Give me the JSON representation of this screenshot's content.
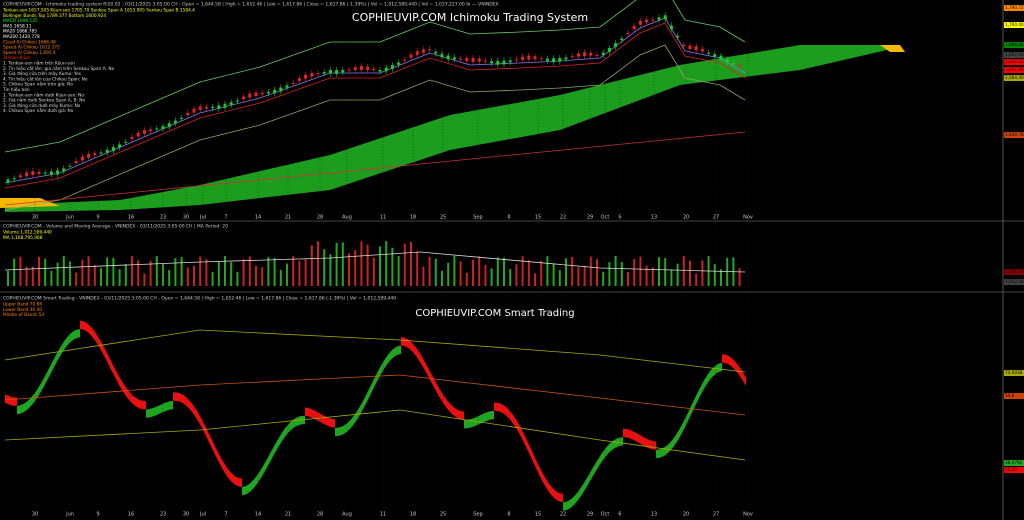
{
  "panels": [
    {
      "title": "COPHIEUVIP.COM Ichimoku Trading System",
      "header": "COPHIEUVIP.COM - Ichimoku trading system Ri20.02 - 03/11/2025 3:05:00 CH - Open = 1,644.58 | High = 1,652.46 | Low = 1,617.86 | Close = 1,617.86 (-1.39%) | Vol = 1,012,589,440 | Vol = 1,037,227.00 Ib --- VNINDEX",
      "legend": [
        "Tenkan-sen 1657.505  Kijun-sen 1705.70  Senkou Span A 1653.905  Senkou Span B 1584.4",
        "Bollinger Bands Top 1789.377 Bottom 1600.924",
        "MACD 1696.135",
        "MA5 1658.11",
        "MA20 1666.785",
        "MA200 1420.778",
        "Cloud Ai Chikou 1666.46",
        "Speed Ai Chikou 1612.372",
        "Speed Ai Chikou 1,695.4",
        "Tenkan-Kijun",
        "1. Tenkan-sen nằm trên Kijun-sen",
        "2. Tín hiệu cắt lên: giá nằm trên Senkou Span A: No",
        "3. Giá đóng cửa trên mây Kumo: Yes",
        "4. Tín hiệu cắt lên của Chikou Span: No",
        "5. Chikou Span nằm trên giá: No",
        "Tín hiệu bán",
        "1. Tenkan-sen nằm dưới Kijun-sen: No",
        "2. Giá nằm dưới Senkou Span A, B: No",
        "3. Giá đóng cửa dưới mây Kumo: No",
        "4. Chikou Span nằm dưới giá: No"
      ],
      "price_labels": [
        "1,790.72",
        "1,700.00",
        "1,666.46",
        "1,657.50",
        "1,637.22",
        "1,617.86",
        "1,584.40",
        "1,420.78"
      ]
    },
    {
      "header": "COPHIEUVIP.COM - Volume and Moving Average - VNINDEX - 03/11/2025 3:05:00 CH | MA Period: 20",
      "legend": [
        "Volume 1,012,589,440",
        "MA 1,168,795,968"
      ],
      "price_labels": [
        "1,168,795,968",
        "1,012,589,440"
      ]
    },
    {
      "title": "COPHIEUVIP.COM Smart Trading",
      "header": "COPHIEUVIP.COM Smart Trading - VNINDEX - 03/11/2025 3:05:00 CH - Open = 1,644.58 | High = 1,652.46 | Low = 1,617.86 | Close = 1,617.86 (-1.39%) | Vol = 1,012,589,440",
      "legend": [
        "Upper Band 79.86",
        "Lower Band 36.00",
        "Middle of Bands 54"
      ],
      "price_labels": [
        "73.0038",
        "54.8",
        "38.4792",
        "36.00"
      ]
    }
  ],
  "x_labels": [
    "30",
    "Jun",
    "9",
    "16",
    "23",
    "30",
    "Jul",
    "7",
    "14",
    "21",
    "28",
    "Aug",
    "11",
    "18",
    "25",
    "Sep",
    "8",
    "15",
    "22",
    "29",
    "Oct",
    "6",
    "13",
    "20",
    "27",
    "Nov"
  ]
}
